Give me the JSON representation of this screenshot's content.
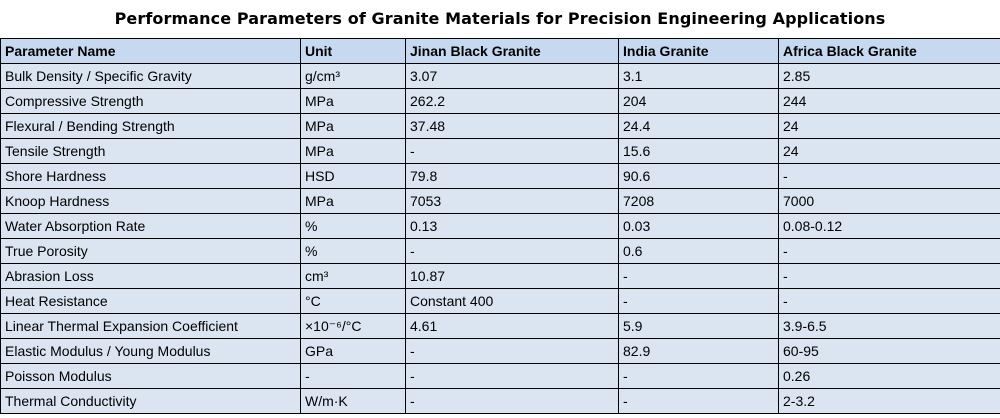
{
  "title": "Performance Parameters of Granite Materials for Precision Engineering Applications",
  "table": {
    "headers": [
      "Parameter Name",
      "Unit",
      "Jinan Black Granite",
      "India Granite",
      "Africa Black Granite"
    ],
    "rows": [
      [
        "Bulk Density / Specific Gravity",
        "g/cm³",
        "3.07",
        "3.1",
        "2.85"
      ],
      [
        "Compressive Strength",
        "MPa",
        "262.2",
        "204",
        "244"
      ],
      [
        "Flexural / Bending Strength",
        "MPa",
        "37.48",
        "24.4",
        "24"
      ],
      [
        "Tensile Strength",
        "MPa",
        "-",
        "15.6",
        "24"
      ],
      [
        "Shore Hardness",
        "HSD",
        "79.8",
        "90.6",
        "-"
      ],
      [
        "Knoop Hardness",
        "MPa",
        "7053",
        "7208",
        "7000"
      ],
      [
        "Water Absorption Rate",
        "%",
        "0.13",
        "0.03",
        "0.08-0.12"
      ],
      [
        "True Porosity",
        "%",
        "-",
        "0.6",
        "-"
      ],
      [
        "Abrasion Loss",
        "cm³",
        "10.87",
        "-",
        "-"
      ],
      [
        "Heat Resistance",
        "°C",
        "Constant 400",
        "-",
        "-"
      ],
      [
        "Linear Thermal Expansion Coefficient",
        "×10⁻⁶/°C",
        "4.61",
        "5.9",
        "3.9-6.5"
      ],
      [
        "Elastic Modulus / Young Modulus",
        "GPa",
        "-",
        "82.9",
        "60-95"
      ],
      [
        "Poisson Modulus",
        "-",
        "-",
        "-",
        "0.26"
      ],
      [
        "Thermal Conductivity",
        "W/m·K",
        "-",
        "-",
        "2-3.2"
      ]
    ]
  },
  "colors": {
    "header_background": "#c6d9f0",
    "cell_background": "#dbe5f1",
    "border": "#000000"
  }
}
